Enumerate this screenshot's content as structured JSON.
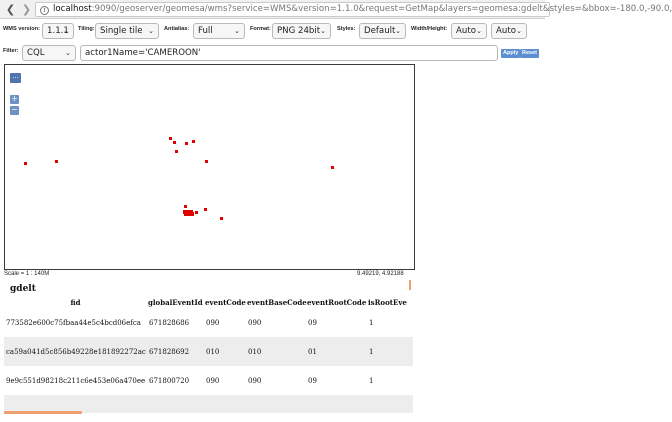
{
  "browser": {
    "url_host": "localhost",
    "url_rest": ":9090/geoserver/geomesa/wms?service=WMS&version=1.1.0&request=GetMap&layers=geomesa:gdelt&styles=&bbox=-180.0,-90.0,"
  },
  "toolbar": {
    "wms_version_label": "WMS version:",
    "wms_version_value": "1.1.1",
    "tiling_label": "Tiling:",
    "tiling_value": "Single tile",
    "antialias_label": "Antialias:",
    "antialias_value": "Full",
    "format_label": "Format:",
    "format_value": "PNG 24bit",
    "styles_label": "Styles:",
    "styles_value": "Default",
    "width_height_label": "Width/Height:",
    "width_value": "Auto",
    "height_value": "Auto"
  },
  "filter": {
    "label": "Filter:",
    "type_value": "CQL",
    "expression": "actor1Name='CAMEROON'",
    "apply_label": "Apply",
    "reset_label": "Reset"
  },
  "map": {
    "more_label": "...",
    "zoom_in_label": "+",
    "zoom_out_label": "−",
    "point_color": "#e10000",
    "scale_text": "Scale = 1 : 140M",
    "coords_text": "9.49219, 4.92188"
  },
  "layer_title": "gdelt",
  "table": {
    "columns": [
      "fid",
      "globalEventId",
      "eventCode",
      "eventBaseCode",
      "eventRootCode",
      "isRootEve"
    ],
    "rows": [
      [
        "773582e600c75fbaa44e5c4bcd06efca",
        "671828686",
        "090",
        "090",
        "09",
        "1"
      ],
      [
        "ca59a041d5c856b49228e181892272ac",
        "671828692",
        "010",
        "010",
        "01",
        "1"
      ],
      [
        "9e9c551d98218c211c6e453e06a470ee",
        "671800720",
        "090",
        "090",
        "09",
        "1"
      ],
      [
        "",
        "",
        "",
        "",
        "",
        ""
      ]
    ]
  }
}
